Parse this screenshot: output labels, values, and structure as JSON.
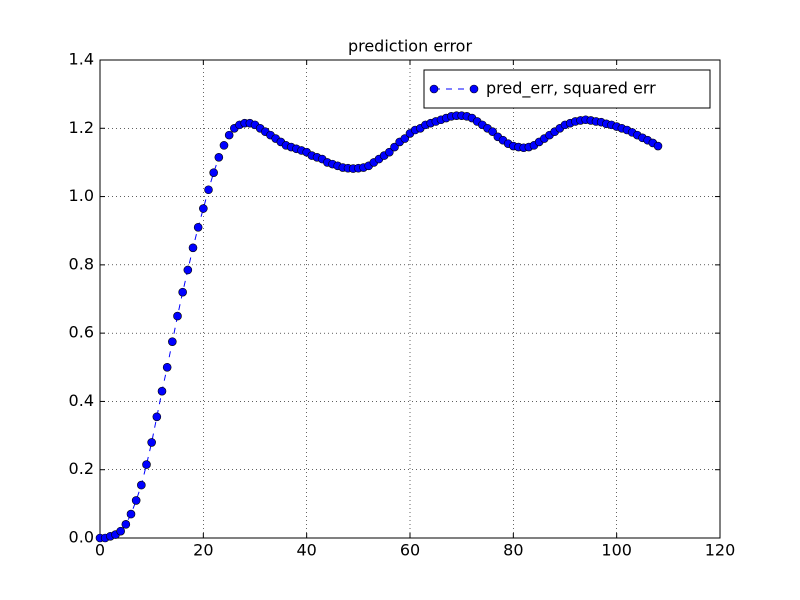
{
  "chart_data": {
    "type": "line",
    "title": "prediction error",
    "x": [
      0,
      1,
      2,
      3,
      4,
      5,
      6,
      7,
      8,
      9,
      10,
      11,
      12,
      13,
      14,
      15,
      16,
      17,
      18,
      19,
      20,
      21,
      22,
      23,
      24,
      25,
      26,
      27,
      28,
      29,
      30,
      31,
      32,
      33,
      34,
      35,
      36,
      37,
      38,
      39,
      40,
      41,
      42,
      43,
      44,
      45,
      46,
      47,
      48,
      49,
      50,
      51,
      52,
      53,
      54,
      55,
      56,
      57,
      58,
      59,
      60,
      61,
      62,
      63,
      64,
      65,
      66,
      67,
      68,
      69,
      70,
      71,
      72,
      73,
      74,
      75,
      76,
      77,
      78,
      79,
      80,
      81,
      82,
      83,
      84,
      85,
      86,
      87,
      88,
      89,
      90,
      91,
      92,
      93,
      94,
      95,
      96,
      97,
      98,
      99,
      100,
      101,
      102,
      103,
      104,
      105,
      106,
      107,
      108
    ],
    "series": [
      {
        "name": "pred_err, squared err",
        "color": "#0000ff",
        "values": [
          0.0,
          0.0,
          0.005,
          0.01,
          0.02,
          0.04,
          0.07,
          0.11,
          0.155,
          0.215,
          0.28,
          0.355,
          0.43,
          0.5,
          0.575,
          0.65,
          0.72,
          0.785,
          0.85,
          0.91,
          0.965,
          1.02,
          1.07,
          1.115,
          1.15,
          1.18,
          1.2,
          1.21,
          1.215,
          1.215,
          1.21,
          1.2,
          1.19,
          1.18,
          1.17,
          1.16,
          1.15,
          1.145,
          1.14,
          1.135,
          1.13,
          1.12,
          1.115,
          1.11,
          1.1,
          1.095,
          1.09,
          1.085,
          1.083,
          1.082,
          1.083,
          1.085,
          1.09,
          1.1,
          1.11,
          1.12,
          1.13,
          1.145,
          1.16,
          1.17,
          1.185,
          1.195,
          1.2,
          1.21,
          1.215,
          1.22,
          1.225,
          1.23,
          1.235,
          1.237,
          1.237,
          1.235,
          1.23,
          1.22,
          1.21,
          1.2,
          1.19,
          1.175,
          1.165,
          1.155,
          1.148,
          1.145,
          1.143,
          1.145,
          1.15,
          1.16,
          1.17,
          1.18,
          1.19,
          1.2,
          1.21,
          1.215,
          1.22,
          1.223,
          1.225,
          1.223,
          1.22,
          1.218,
          1.213,
          1.21,
          1.205,
          1.2,
          1.195,
          1.188,
          1.18,
          1.172,
          1.165,
          1.157,
          1.148
        ]
      }
    ],
    "xlim": [
      0,
      120
    ],
    "xticks": [
      0,
      20,
      40,
      60,
      80,
      100,
      120
    ],
    "ylim": [
      0,
      1.4
    ],
    "yticks": [
      {
        "value": 0,
        "label": "0.0"
      },
      0.2,
      0.4,
      0.6,
      0.8,
      {
        "value": 1,
        "label": "1.0"
      },
      1.2,
      1.4
    ],
    "grid": true,
    "legend": "upper right",
    "line_style": "dashed",
    "marker": "circle"
  }
}
